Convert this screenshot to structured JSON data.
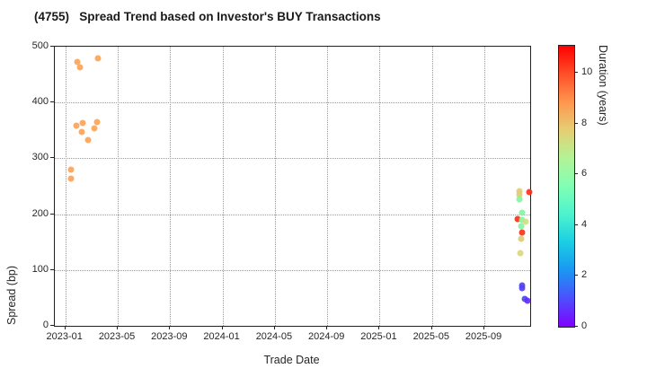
{
  "title": "(4755)   Spread Trend based on Investor's BUY Transactions",
  "chart_data": {
    "type": "scatter",
    "title": "(4755)   Spread Trend based on Investor's BUY Transactions",
    "xlabel": "Trade Date",
    "ylabel": "Spread (bp)",
    "grid": true,
    "ylim": [
      0,
      500
    ],
    "yticks": [
      0,
      100,
      200,
      300,
      400,
      500
    ],
    "xlim": [
      2022.933,
      2025.958
    ],
    "xticks": [
      {
        "label": "2023-01",
        "year": 2023.0
      },
      {
        "label": "2023-05",
        "year": 2023.3333
      },
      {
        "label": "2023-09",
        "year": 2023.6667
      },
      {
        "label": "2024-01",
        "year": 2024.0
      },
      {
        "label": "2024-05",
        "year": 2024.3333
      },
      {
        "label": "2024-09",
        "year": 2024.6667
      },
      {
        "label": "2025-01",
        "year": 2025.0
      },
      {
        "label": "2025-05",
        "year": 2025.3333
      },
      {
        "label": "2025-09",
        "year": 2025.6667
      }
    ],
    "colorbar": {
      "label": "Duration (years)",
      "range": [
        0,
        11.07
      ],
      "ticks": [
        0,
        2,
        4,
        6,
        8,
        10
      ],
      "colormap": "rainbow",
      "gradient_bottom_to_top": [
        {
          "pos": 0.0,
          "color": "#8000FF"
        },
        {
          "pos": 0.1,
          "color": "#4D4FFC"
        },
        {
          "pos": 0.2,
          "color": "#1A96F3"
        },
        {
          "pos": 0.3,
          "color": "#1ACEE3"
        },
        {
          "pos": 0.4,
          "color": "#4DF3CE"
        },
        {
          "pos": 0.5,
          "color": "#80FFB4"
        },
        {
          "pos": 0.6,
          "color": "#B3F396"
        },
        {
          "pos": 0.7,
          "color": "#E6CE74"
        },
        {
          "pos": 0.8,
          "color": "#FF964F"
        },
        {
          "pos": 0.9,
          "color": "#FF4F28"
        },
        {
          "pos": 1.0,
          "color": "#FF0000"
        }
      ]
    },
    "points": [
      {
        "x": 2023.034,
        "spread": 279,
        "duration": 8.5,
        "color": "#FCA457"
      },
      {
        "x": 2023.034,
        "spread": 264,
        "duration": 8.5,
        "color": "#FCA457"
      },
      {
        "x": 2023.076,
        "spread": 472,
        "duration": 8.5,
        "color": "#FCA457"
      },
      {
        "x": 2023.091,
        "spread": 463,
        "duration": 8.5,
        "color": "#FCA457"
      },
      {
        "x": 2023.209,
        "spread": 479,
        "duration": 8.5,
        "color": "#FCA457"
      },
      {
        "x": 2023.072,
        "spread": 358,
        "duration": 8.5,
        "color": "#FCA457"
      },
      {
        "x": 2023.11,
        "spread": 364,
        "duration": 8.5,
        "color": "#FCA457"
      },
      {
        "x": 2023.105,
        "spread": 348,
        "duration": 8.5,
        "color": "#FCA457"
      },
      {
        "x": 2023.146,
        "spread": 332,
        "duration": 8.5,
        "color": "#FCA457"
      },
      {
        "x": 2023.183,
        "spread": 354,
        "duration": 8.5,
        "color": "#FCA457"
      },
      {
        "x": 2023.202,
        "spread": 365,
        "duration": 8.5,
        "color": "#FCA457"
      },
      {
        "x": 2025.891,
        "spread": 241,
        "duration": 7.7,
        "color": "#E0CC76"
      },
      {
        "x": 2025.891,
        "spread": 234,
        "duration": 7.7,
        "color": "#E0CC76"
      },
      {
        "x": 2025.891,
        "spread": 226,
        "duration": 5.8,
        "color": "#85F5A2"
      },
      {
        "x": 2025.953,
        "spread": 240,
        "duration": 10.4,
        "color": "#FF3018"
      },
      {
        "x": 2025.905,
        "spread": 202,
        "duration": 5.8,
        "color": "#85F5A2"
      },
      {
        "x": 2025.877,
        "spread": 192,
        "duration": 10.4,
        "color": "#FF3018"
      },
      {
        "x": 2025.908,
        "spread": 190,
        "duration": 5.8,
        "color": "#85F5A2"
      },
      {
        "x": 2025.927,
        "spread": 186,
        "duration": 7.3,
        "color": "#D3DE81"
      },
      {
        "x": 2025.903,
        "spread": 179,
        "duration": 5.8,
        "color": "#85F5A2"
      },
      {
        "x": 2025.908,
        "spread": 168,
        "duration": 10.4,
        "color": "#FF3018"
      },
      {
        "x": 2025.899,
        "spread": 156,
        "duration": 7.7,
        "color": "#E0CC76"
      },
      {
        "x": 2025.894,
        "spread": 131,
        "duration": 7.5,
        "color": "#DAD87C"
      },
      {
        "x": 2025.909,
        "spread": 73,
        "duration": 0.9,
        "color": "#5240F5"
      },
      {
        "x": 2025.909,
        "spread": 68,
        "duration": 0.9,
        "color": "#5240F5"
      },
      {
        "x": 2025.923,
        "spread": 49,
        "duration": 1.0,
        "color": "#4A48F0"
      },
      {
        "x": 2025.938,
        "spread": 45,
        "duration": 0.6,
        "color": "#642BFE"
      }
    ]
  }
}
